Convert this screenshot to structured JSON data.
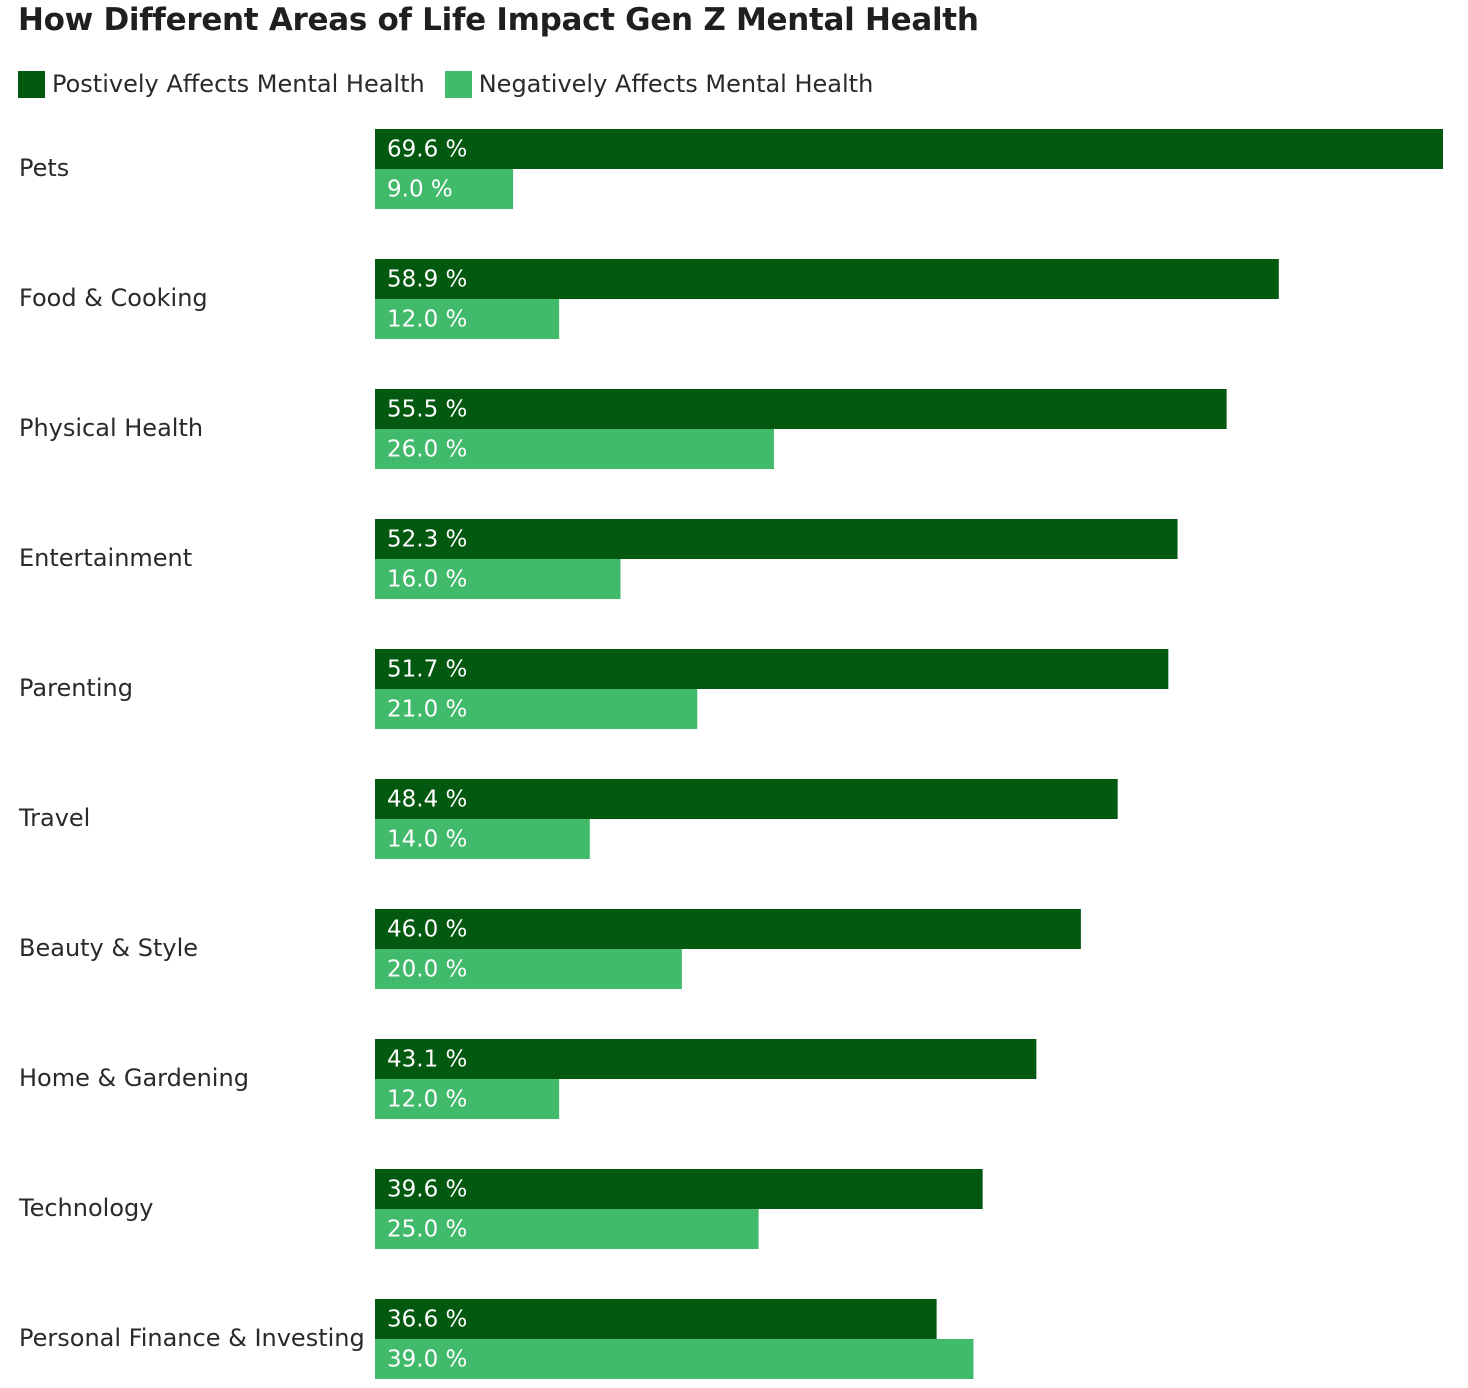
{
  "colors": {
    "positive": "#02590f",
    "negative": "#42ba6b"
  },
  "legend": {
    "positive_label": "Postively Affects Mental Health",
    "negative_label": "Negatively Affects Mental Health"
  },
  "chart_data": {
    "type": "bar",
    "orientation": "horizontal",
    "title": "How Different Areas of Life Impact Gen Z Mental Health",
    "categories": [
      "Pets",
      "Food & Cooking",
      "Physical Health",
      "Entertainment",
      "Parenting",
      "Travel",
      "Beauty & Style",
      "Home & Gardening",
      "Technology",
      "Personal Finance & Investing"
    ],
    "series": [
      {
        "name": "Postively Affects Mental Health",
        "values": [
          69.6,
          58.9,
          55.5,
          52.3,
          51.7,
          48.4,
          46.0,
          43.1,
          39.6,
          36.6
        ],
        "labels": [
          "69.6 %",
          "58.9 %",
          "55.5 %",
          "52.3 %",
          "51.7 %",
          "48.4 %",
          "46.0 %",
          "43.1 %",
          "39.6 %",
          "36.6 %"
        ]
      },
      {
        "name": "Negatively Affects Mental Health",
        "values": [
          9.0,
          12.0,
          26.0,
          16.0,
          21.0,
          14.0,
          20.0,
          12.0,
          25.0,
          39.0
        ],
        "labels": [
          "9.0 %",
          "12.0 %",
          "26.0 %",
          "16.0 %",
          "21.0 %",
          "14.0 %",
          "20.0 %",
          "12.0 %",
          "25.0 %",
          "39.0 %"
        ]
      }
    ],
    "xlim": [
      0,
      69.6
    ],
    "unit": "%",
    "grid": false,
    "legend_position": "top-left"
  }
}
